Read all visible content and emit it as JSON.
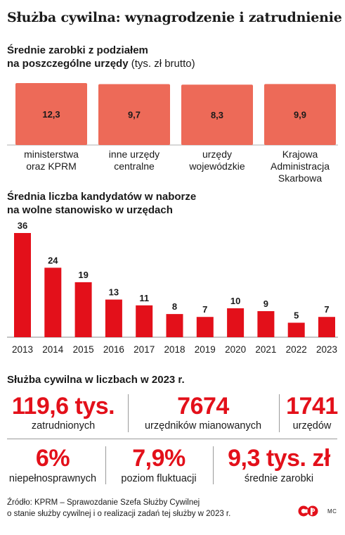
{
  "title": "Służba cywilna: wynagrodzenie i zatrudnienie",
  "salary_section": {
    "title_line1": "Średnie zarobki z podziałem",
    "title_line2": "na poszczególne urzędy",
    "unit": "(tys. zł brutto)"
  },
  "candidates_section": {
    "title_line1": "Średnia liczba kandydatów w naborze",
    "title_line2": "na wolne stanowisko w urzędach"
  },
  "chart_data": [
    {
      "type": "bar",
      "title": "Średnie zarobki z podziałem na poszczególne urzędy",
      "ylabel": "(tys. zł brutto)",
      "categories": [
        [
          "ministerstwa",
          "oraz KPRM"
        ],
        [
          "inne urzędy",
          "centralne"
        ],
        [
          "urzędy",
          "wojewódzkie"
        ],
        [
          "Krajowa",
          "Administracja",
          "Skarbowa"
        ]
      ],
      "values": [
        12.3,
        9.7,
        8.3,
        9.9
      ],
      "value_labels": [
        "12,3",
        "9,7",
        "8,3",
        "9,9"
      ],
      "color": "#ed6a58"
    },
    {
      "type": "bar",
      "title": "Średnia liczba kandydatów w naborze na wolne stanowisko w urzędach",
      "categories": [
        "2013",
        "2014",
        "2015",
        "2016",
        "2017",
        "2018",
        "2019",
        "2020",
        "2021",
        "2022",
        "2023"
      ],
      "values": [
        36,
        24,
        19,
        13,
        11,
        8,
        7,
        10,
        9,
        5,
        7
      ],
      "color": "#e3101a"
    }
  ],
  "stats": {
    "title": "Służba cywilna w liczbach w 2023 r.",
    "row1": [
      {
        "value": "119,6 tys.",
        "label": "zatrudnionych"
      },
      {
        "value": "7674",
        "label": "urzędników mianowanych"
      },
      {
        "value": "1741",
        "label": "urzędów"
      }
    ],
    "row2": [
      {
        "value": "6%",
        "label": "niepełnosprawnych"
      },
      {
        "value": "7,9%",
        "label": "poziom fluktuacji"
      },
      {
        "value": "9,3 tys. zł",
        "label": "średnie zarobki"
      }
    ],
    "accent_color": "#e3101a"
  },
  "source": {
    "line1": "Źródło: KPRM – Sprawozdanie Szefa Służby Cywilnej",
    "line2": "o stanie służby cywilnej i o realizacji zadań tej służby w 2023 r."
  },
  "initials": "MC",
  "logo_icon": "publisher-logo-icon"
}
